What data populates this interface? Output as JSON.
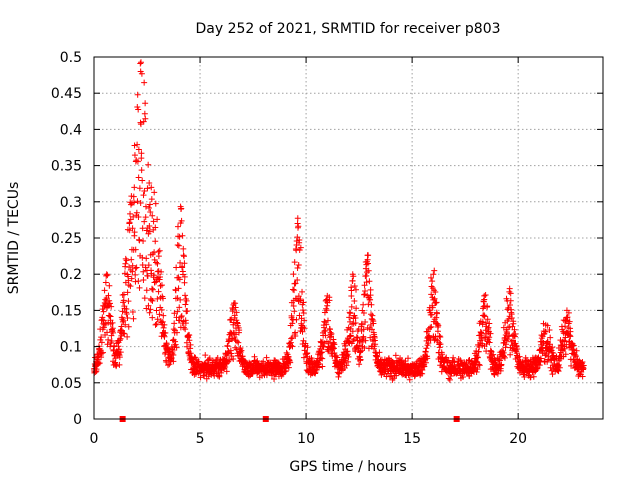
{
  "chart_data": {
    "type": "scatter",
    "title": "Day 252 of 2021, SRMTID for receiver p803",
    "xlabel": "GPS time / hours",
    "ylabel": "SRMTID / TECUs",
    "xlim": [
      0,
      24
    ],
    "ylim": [
      0,
      0.5
    ],
    "xticks": [
      0,
      5,
      10,
      15,
      20
    ],
    "xtick_labels": [
      "0",
      "5",
      "10",
      "15",
      "20"
    ],
    "yticks": [
      0,
      0.05,
      0.1,
      0.15,
      0.2,
      0.25,
      0.3,
      0.35,
      0.4,
      0.45,
      0.5
    ],
    "ytick_labels": [
      "0",
      "0.05",
      "0.1",
      "0.15",
      "0.2",
      "0.25",
      "0.3",
      "0.35",
      "0.4",
      "0.45",
      "0.5"
    ],
    "grid": true,
    "marker": "+",
    "series_color": "#ff0000",
    "x_range": [
      0.0,
      23.1
    ],
    "baseline_value": 0.07,
    "peaks": [
      {
        "x": 0.6,
        "y": 0.2
      },
      {
        "x": 1.9,
        "y": 0.32
      },
      {
        "x": 2.2,
        "y": 0.48
      },
      {
        "x": 2.7,
        "y": 0.32
      },
      {
        "x": 4.1,
        "y": 0.29
      },
      {
        "x": 6.6,
        "y": 0.16
      },
      {
        "x": 9.6,
        "y": 0.27
      },
      {
        "x": 11.0,
        "y": 0.17
      },
      {
        "x": 12.2,
        "y": 0.2
      },
      {
        "x": 12.9,
        "y": 0.22
      },
      {
        "x": 16.0,
        "y": 0.2
      },
      {
        "x": 18.4,
        "y": 0.17
      },
      {
        "x": 19.6,
        "y": 0.18
      },
      {
        "x": 21.3,
        "y": 0.13
      },
      {
        "x": 22.3,
        "y": 0.15
      }
    ],
    "axis_markers": [
      {
        "x": 1.35,
        "y": 0
      },
      {
        "x": 8.1,
        "y": 0
      },
      {
        "x": 17.1,
        "y": 0
      }
    ]
  }
}
